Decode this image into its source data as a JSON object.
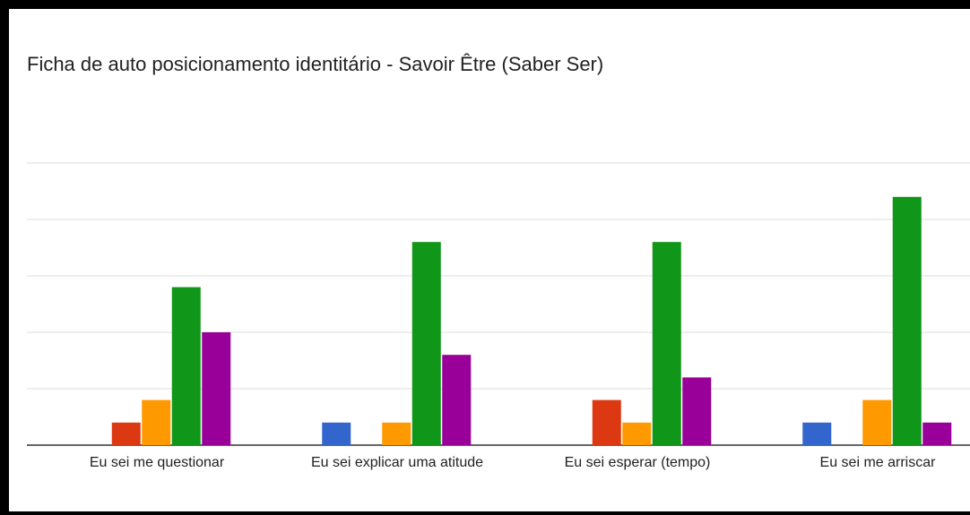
{
  "chart_data": {
    "type": "bar",
    "title": "Ficha de auto posicionamento identitário - Savoir Être (Saber Ser)",
    "categories": [
      "Eu sei me questionar",
      "Eu sei explicar uma atitude",
      "Eu sei esperar (tempo)",
      "Eu sei me arriscar"
    ],
    "series": [
      {
        "color": "#3366cc",
        "values": [
          0,
          1,
          0,
          1
        ]
      },
      {
        "color": "#dc3912",
        "values": [
          1,
          0,
          2,
          0
        ]
      },
      {
        "color": "#ff9900",
        "values": [
          2,
          1,
          1,
          2
        ]
      },
      {
        "color": "#109618",
        "values": [
          7,
          9,
          9,
          11
        ]
      },
      {
        "color": "#990099",
        "values": [
          5,
          4,
          3,
          1
        ]
      }
    ],
    "ylim": [
      0,
      12.5
    ],
    "yticks": [
      0,
      2.5,
      5,
      7.5,
      10,
      12.5
    ],
    "grid": true
  }
}
